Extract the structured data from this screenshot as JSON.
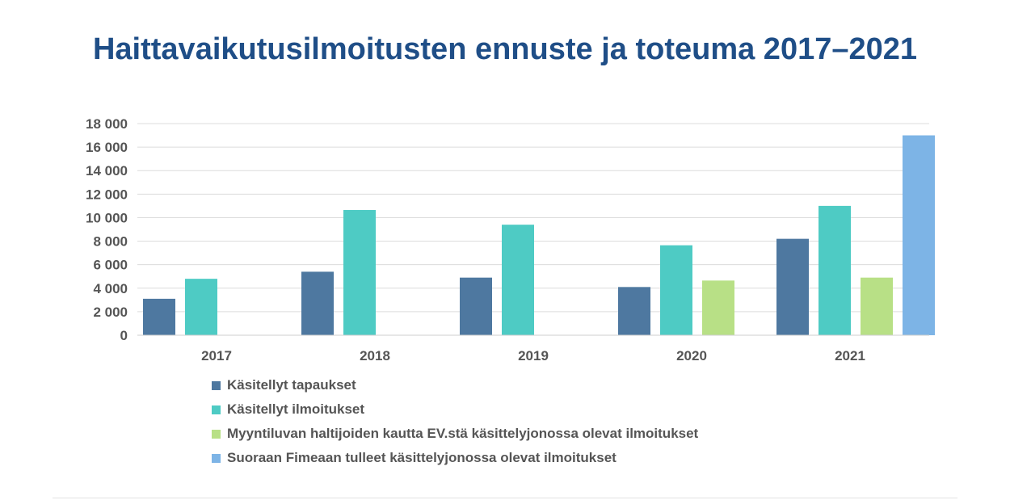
{
  "title": "Haittavaikutusilmoitusten ennuste ja toteuma 2017–2021",
  "chart_data": {
    "type": "bar",
    "categories": [
      "2017",
      "2018",
      "2019",
      "2020",
      "2021"
    ],
    "ylim": [
      0,
      18000
    ],
    "yticks": [
      0,
      2000,
      4000,
      6000,
      8000,
      10000,
      12000,
      14000,
      16000,
      18000
    ],
    "ytick_labels": [
      "0",
      "2 000",
      "4 000",
      "6 000",
      "8 000",
      "10 000",
      "12 000",
      "14 000",
      "16 000",
      "18 000"
    ],
    "grid": true,
    "legend_position": "bottom",
    "series": [
      {
        "name": "Käsitellyt tapaukset",
        "color": "#4e78a0",
        "values": [
          3100,
          5400,
          4900,
          4100,
          8200
        ]
      },
      {
        "name": "Käsitellyt ilmoitukset",
        "color": "#4ecbc4",
        "values": [
          4800,
          10650,
          9400,
          7650,
          11000
        ]
      },
      {
        "name": "Myyntiluvan haltijoiden kautta EV.stä käsittelyjonossa olevat ilmoitukset",
        "color": "#b8e086",
        "values": [
          null,
          null,
          null,
          4650,
          4900
        ]
      },
      {
        "name": "Suoraan Fimeaan tulleet käsittelyjonossa olevat ilmoitukset",
        "color": "#7db4e6",
        "values": [
          null,
          null,
          null,
          null,
          17000
        ]
      }
    ]
  }
}
